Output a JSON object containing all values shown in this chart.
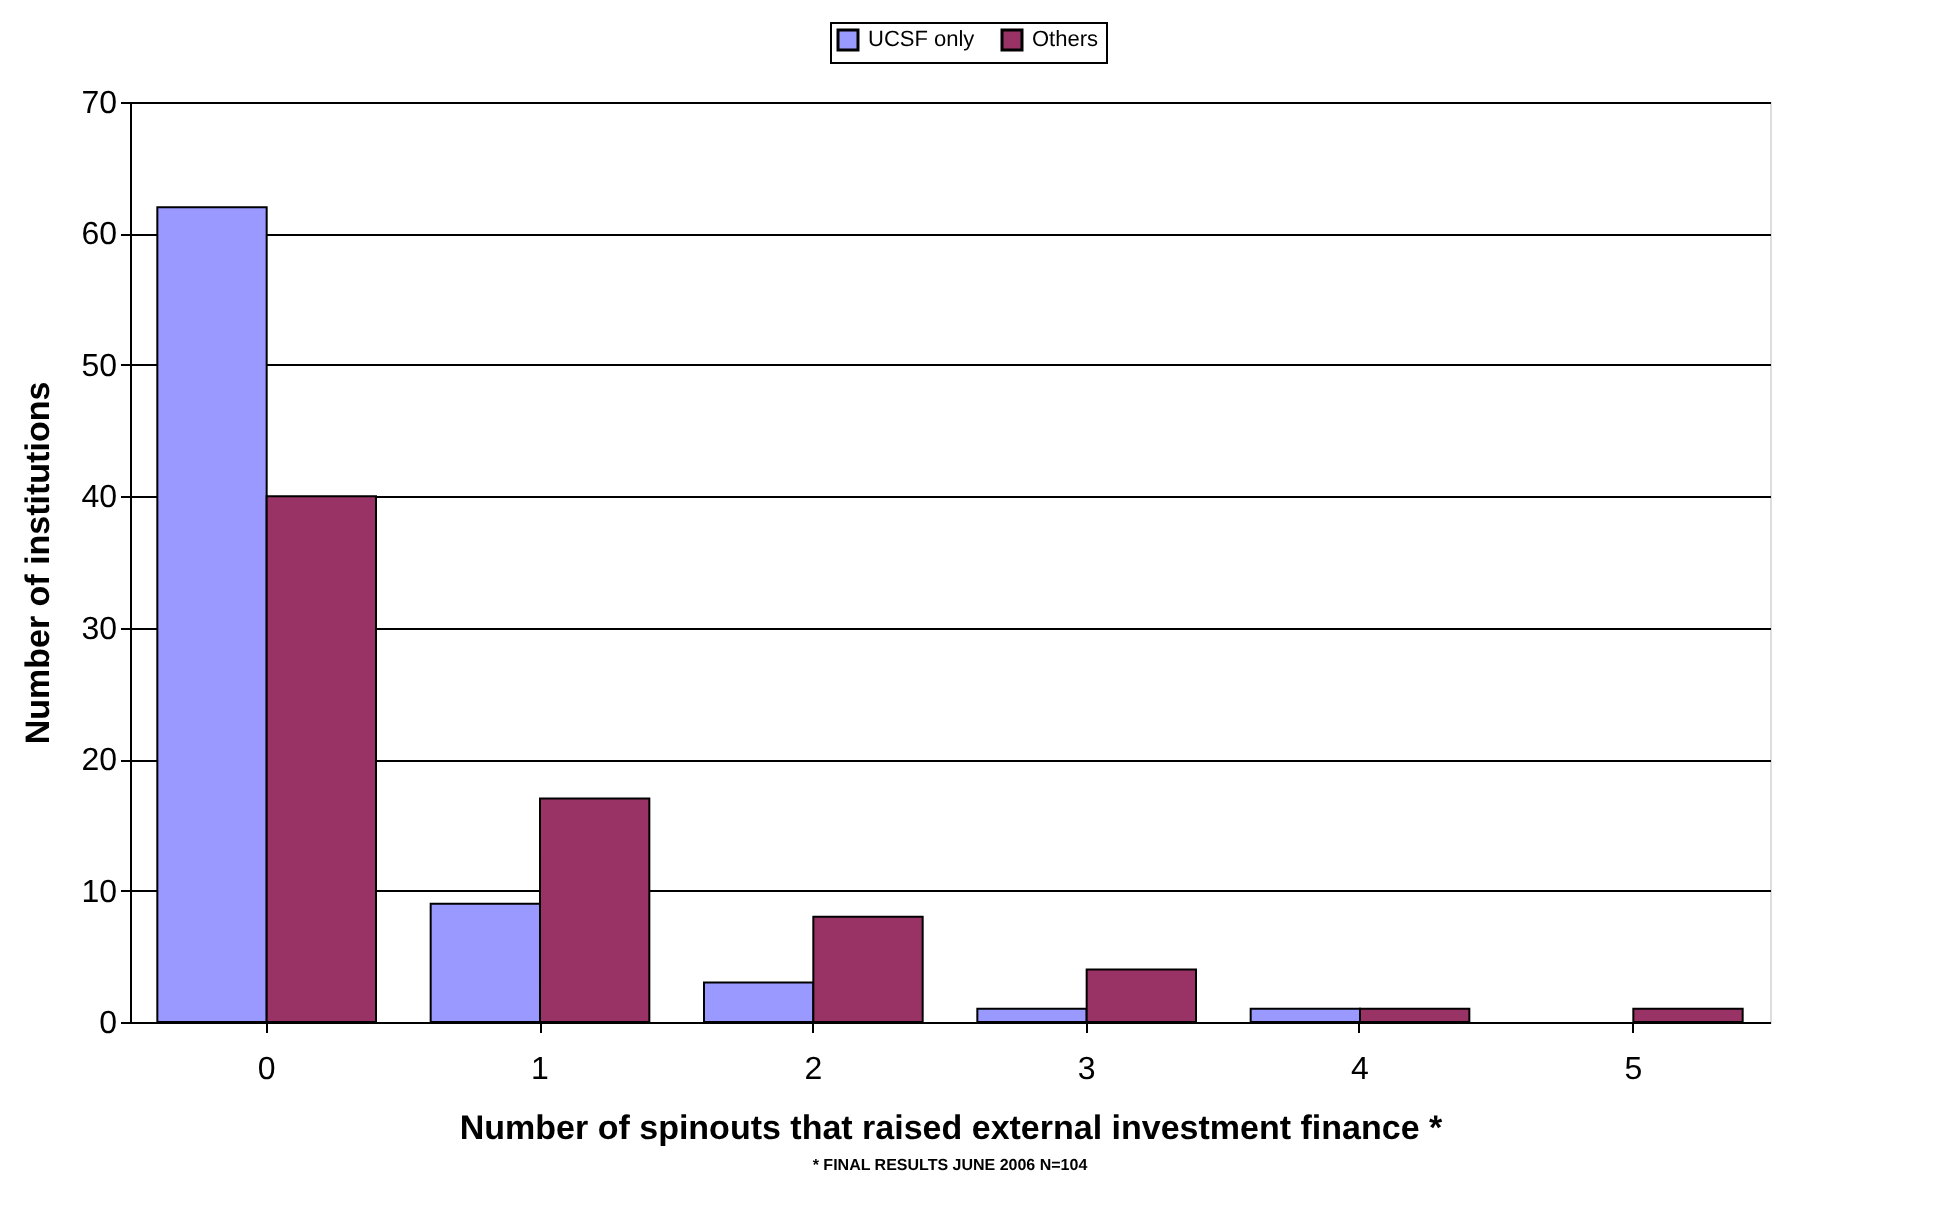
{
  "chart_data": {
    "type": "bar",
    "xlabel": "Number of spinouts that raised external investment finance *",
    "ylabel": "Number of institutions",
    "annotations": [
      "* FINAL RESULTS JUNE 2006 N=104"
    ],
    "categories": [
      "0",
      "1",
      "2",
      "3",
      "4",
      "5"
    ],
    "series": [
      {
        "name": "UCSF only",
        "color": "#9999ff",
        "values": [
          62,
          9,
          3,
          1,
          1,
          null
        ]
      },
      {
        "name": "Others",
        "color": "#993366",
        "values": [
          40,
          17,
          8,
          4,
          1,
          1
        ]
      }
    ],
    "ylim": [
      0,
      70
    ],
    "yticks": [
      0,
      10,
      20,
      30,
      40,
      50,
      60,
      70
    ],
    "grid": "y",
    "legend": "top"
  }
}
